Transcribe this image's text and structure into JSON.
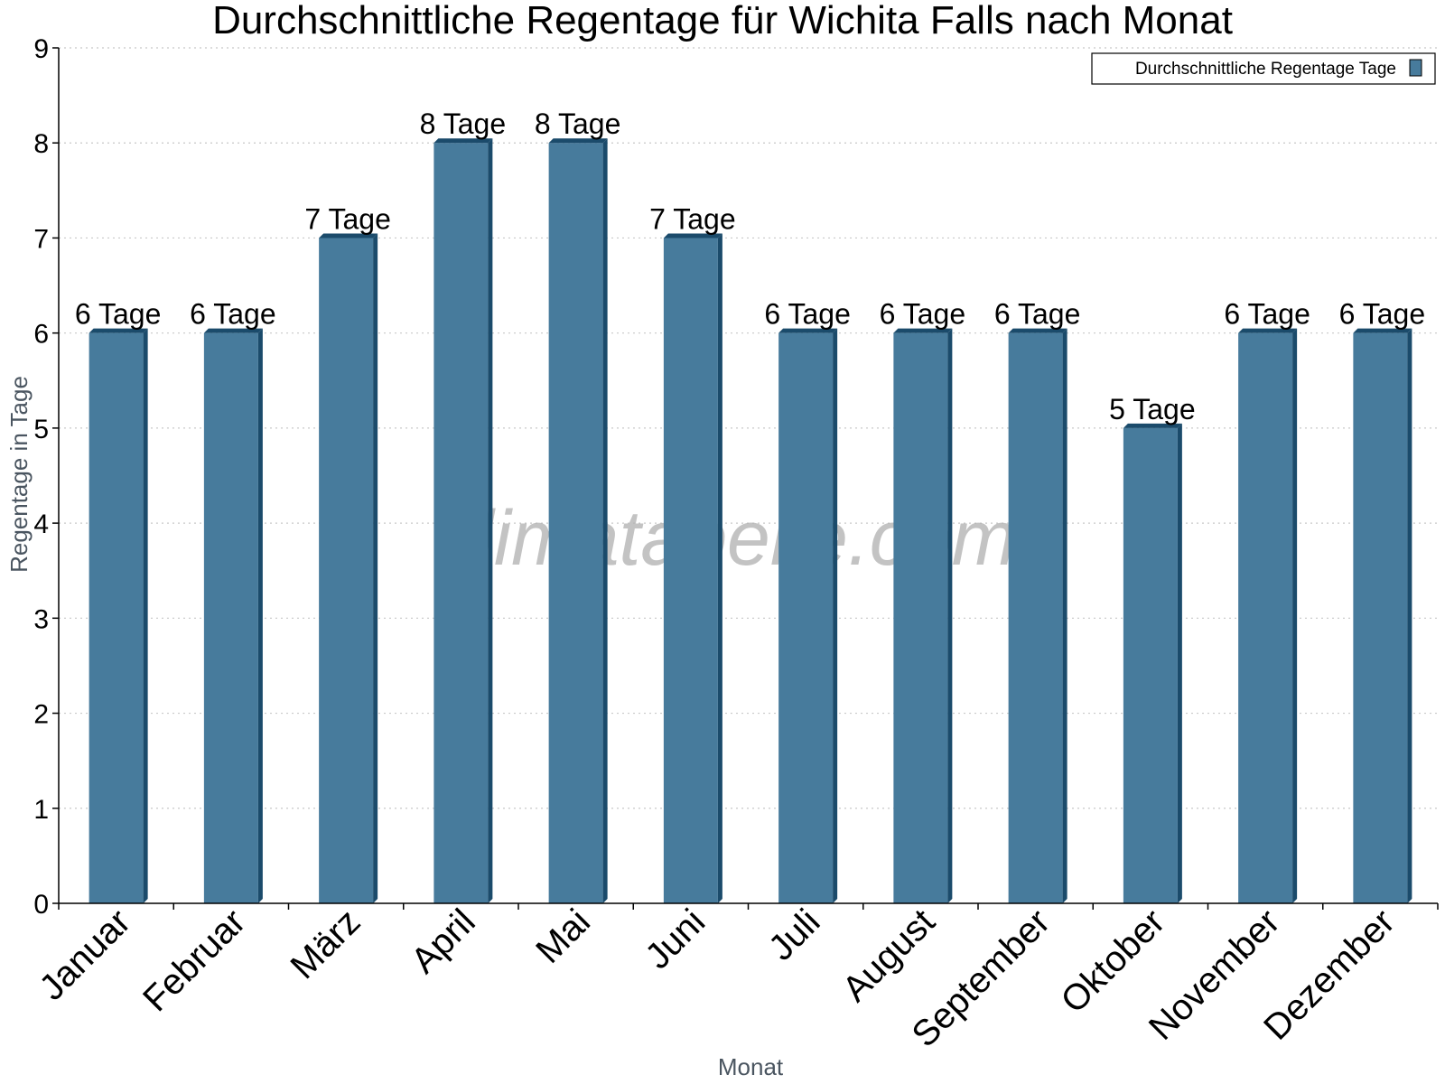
{
  "chart_data": {
    "type": "bar",
    "title": "Durchschnittliche Regentage für Wichita Falls nach Monat",
    "xlabel": "Monat",
    "ylabel": "Regentage in Tage",
    "ylim": [
      0,
      9
    ],
    "yticks": [
      0,
      1,
      2,
      3,
      4,
      5,
      6,
      7,
      8,
      9
    ],
    "grid": "horizontal-dotted",
    "legend_position": "top-right",
    "categories": [
      "Januar",
      "Februar",
      "März",
      "April",
      "Mai",
      "Juni",
      "Juli",
      "August",
      "September",
      "Oktober",
      "November",
      "Dezember"
    ],
    "series": [
      {
        "name": "Durchschnittliche Regentage Tage",
        "values": [
          6,
          6,
          7,
          8,
          8,
          7,
          6,
          6,
          6,
          5,
          6,
          6
        ],
        "labels": [
          "6 Tage",
          "6 Tage",
          "7 Tage",
          "8 Tage",
          "8 Tage",
          "7 Tage",
          "6 Tage",
          "6 Tage",
          "6 Tage",
          "5 Tage",
          "6 Tage",
          "6 Tage"
        ]
      }
    ],
    "colors": {
      "bar_front": "#477b9c",
      "bar_side": "#1b4b6b",
      "bar_top": "#1b4b6b",
      "axis": "#000000",
      "grid": "#c8c8c8"
    },
    "watermark": "klimatabelle.com"
  }
}
